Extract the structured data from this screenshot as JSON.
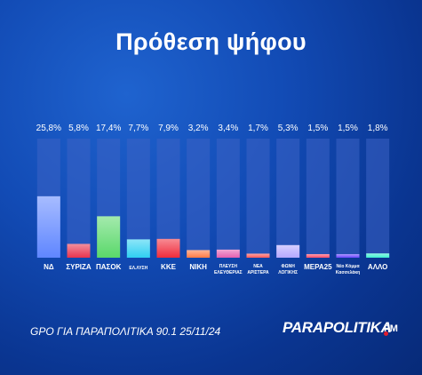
{
  "title": "Πρόθεση ψήφου",
  "source": "GPO ΓΙΑ ΠΑΡΑΠΟΛΙΤΙΚΑ 90.1 25/11/24",
  "brand": {
    "name": "PARAPOLITIKA",
    "suffix": "FM"
  },
  "chart_data": {
    "type": "bar",
    "title": "Πρόθεση ψήφου",
    "categories": [
      "ΝΔ",
      "ΣΥΡΙΖΑ",
      "ΠΑΣΟΚ",
      "ΕΛ.ΛΥΣΗ",
      "ΚΚΕ",
      "ΝΙΚΗ",
      [
        "ΠΛΕΥΣΗ",
        "ΕΛΕΥΘΕΡΙΑΣ"
      ],
      [
        "ΝΕΑ",
        "ΑΡΙΣΤΕΡΑ"
      ],
      [
        "ΦΩΝΗ",
        "ΛΟΓΙΚΗΣ"
      ],
      "ΜΕΡΑ25",
      [
        "Νέο Κόμμα",
        "Κασσελάκη"
      ],
      "ΑΛΛΟ"
    ],
    "values": [
      25.8,
      5.8,
      17.4,
      7.7,
      7.9,
      3.2,
      3.4,
      1.7,
      5.3,
      1.5,
      1.5,
      1.8
    ],
    "value_labels": [
      "25,8%",
      "5,8%",
      "17,4%",
      "7,7%",
      "7,9%",
      "3,2%",
      "3,4%",
      "1,7%",
      "5,3%",
      "1,5%",
      "1,5%",
      "1,8%"
    ],
    "ylim": [
      0,
      50
    ],
    "grid": false,
    "colors": [
      "#5f86ff",
      "#e8344e",
      "#5ad86a",
      "#2fd0f2",
      "#f02c3c",
      "#ff7a45",
      "#e45fb0",
      "#ff5a5a",
      "#b5a8ff",
      "#ff4d6a",
      "#6a45ff",
      "#3df0d0"
    ]
  }
}
